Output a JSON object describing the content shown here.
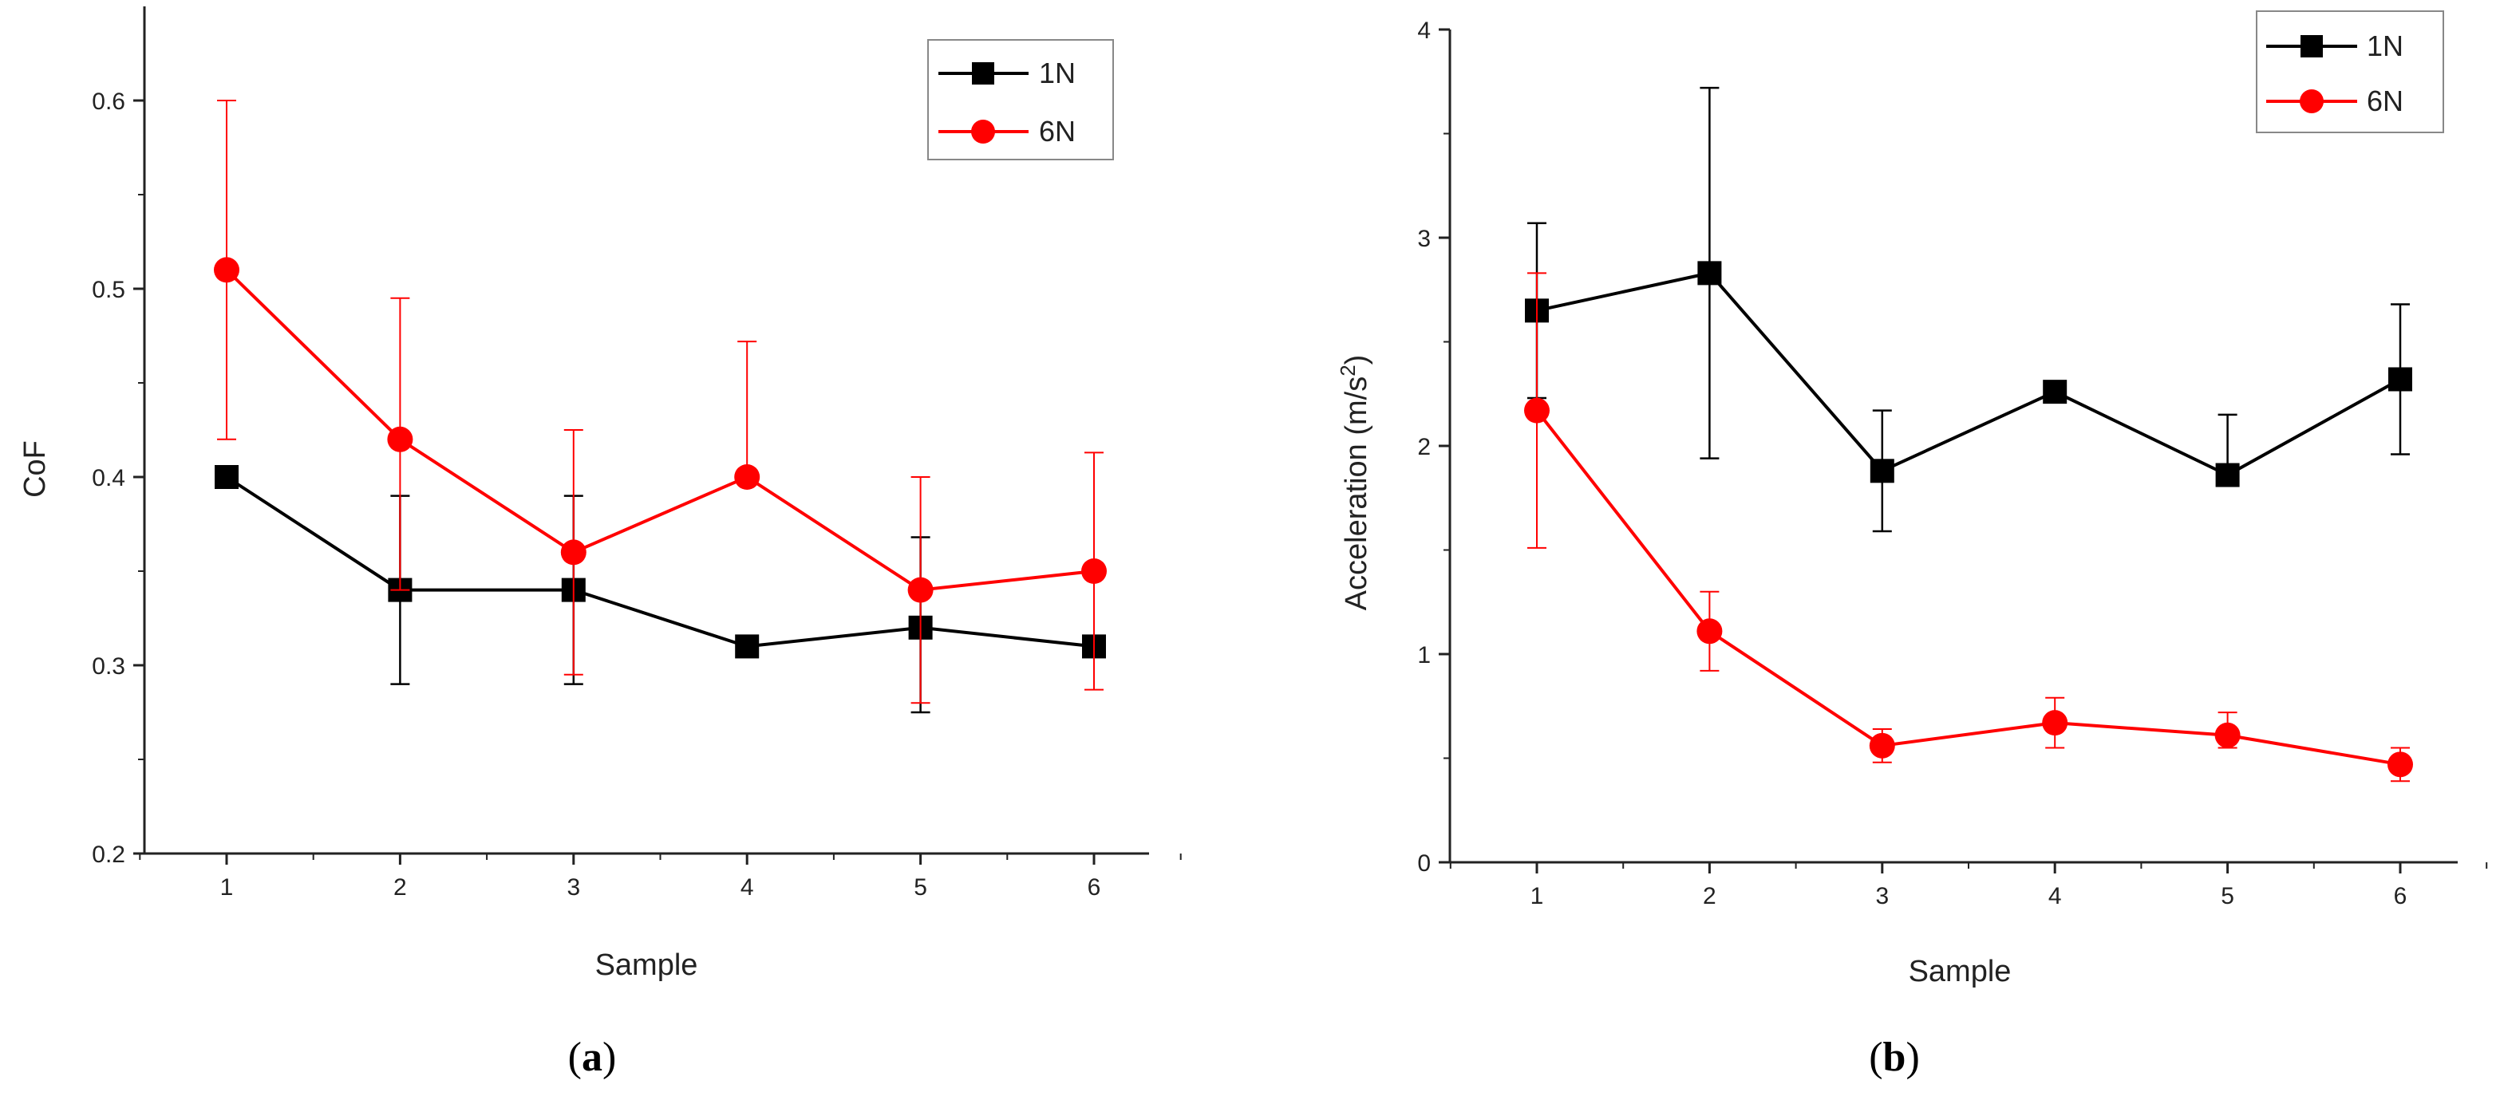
{
  "chart_data": [
    {
      "type": "line",
      "panel": "a",
      "panel_label": {
        "open": "(",
        "letter": "a",
        "close": ")"
      },
      "xlabel": "Sample",
      "ylabel": "CoF",
      "xlim": [
        0.5,
        6.5
      ],
      "ylim": [
        0.2,
        0.65
      ],
      "x_ticks": [
        1,
        2,
        3,
        4,
        5,
        6
      ],
      "y_ticks": [
        0.2,
        0.3,
        0.4,
        0.5,
        0.6
      ],
      "y_tick_labels": [
        "0.2",
        "0.3",
        "0.4",
        "0.5",
        "0.6"
      ],
      "legend_position": "top-right",
      "series": [
        {
          "name": "1N",
          "marker": "square",
          "color": "#000000",
          "x": [
            1,
            2,
            3,
            4,
            5,
            6
          ],
          "values": [
            0.4,
            0.34,
            0.34,
            0.31,
            0.32,
            0.31
          ],
          "err_low": [
            0.4,
            0.29,
            0.29,
            0.31,
            0.275,
            0.31
          ],
          "err_high": [
            0.4,
            0.39,
            0.39,
            0.31,
            0.368,
            0.31
          ]
        },
        {
          "name": "6N",
          "marker": "circle",
          "color": "#ff0000",
          "x": [
            1,
            2,
            3,
            4,
            5,
            6
          ],
          "values": [
            0.51,
            0.42,
            0.36,
            0.4,
            0.34,
            0.35
          ],
          "err_low": [
            0.42,
            0.34,
            0.295,
            0.4,
            0.28,
            0.287
          ],
          "err_high": [
            0.6,
            0.495,
            0.425,
            0.472,
            0.4,
            0.413
          ]
        }
      ]
    },
    {
      "type": "line",
      "panel": "b",
      "panel_label": {
        "open": "(",
        "letter": "b",
        "close": ")"
      },
      "xlabel": "Sample",
      "ylabel": "Acceleration (m/s",
      "ylabel_superscript": "2",
      "ylabel_suffix": ")",
      "xlim": [
        0.5,
        6.5
      ],
      "ylim": [
        0,
        4
      ],
      "x_ticks": [
        1,
        2,
        3,
        4,
        5,
        6
      ],
      "y_ticks": [
        0,
        1,
        2,
        3,
        4
      ],
      "y_tick_labels": [
        "0",
        "1",
        "2",
        "3",
        "4"
      ],
      "legend_position": "top-right",
      "series": [
        {
          "name": "1N",
          "marker": "square",
          "color": "#000000",
          "x": [
            1,
            2,
            3,
            4,
            5,
            6
          ],
          "values": [
            2.65,
            2.83,
            1.88,
            2.26,
            1.86,
            2.32
          ],
          "err_low": [
            2.23,
            1.94,
            1.59,
            2.26,
            1.86,
            1.96
          ],
          "err_high": [
            3.07,
            3.72,
            2.17,
            2.26,
            2.15,
            2.68
          ]
        },
        {
          "name": "6N",
          "marker": "circle",
          "color": "#ff0000",
          "x": [
            1,
            2,
            3,
            4,
            5,
            6
          ],
          "values": [
            2.17,
            1.11,
            0.56,
            0.67,
            0.61,
            0.47
          ],
          "err_low": [
            1.51,
            0.92,
            0.48,
            0.55,
            0.55,
            0.39
          ],
          "err_high": [
            2.83,
            1.3,
            0.64,
            0.79,
            0.72,
            0.55
          ]
        }
      ]
    }
  ]
}
